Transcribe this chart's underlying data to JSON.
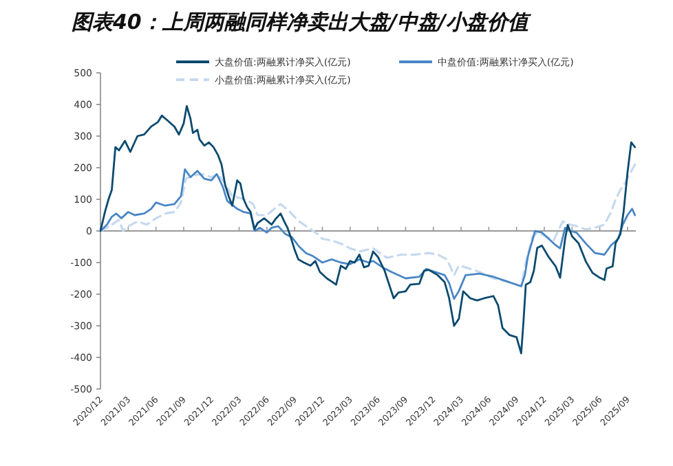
{
  "chart_data": {
    "type": "line",
    "title": "图表40：上周两融同样净卖出大盘/中盘/小盘价值",
    "xlim": [
      "2020-12-01",
      "2025-09-28"
    ],
    "xticks": [
      {
        "value": "2020-12",
        "label": "2020/12"
      },
      {
        "value": "2021-03",
        "label": "2021/03"
      },
      {
        "value": "2021-06",
        "label": "2021/06"
      },
      {
        "value": "2021-09",
        "label": "2021/09"
      },
      {
        "value": "2021-12",
        "label": "2021/12"
      },
      {
        "value": "2022-03",
        "label": "2022/03"
      },
      {
        "value": "2022-06",
        "label": "2022/06"
      },
      {
        "value": "2022-09",
        "label": "2022/09"
      },
      {
        "value": "2022-12",
        "label": "2022/12"
      },
      {
        "value": "2023-03",
        "label": "2023/03"
      },
      {
        "value": "2023-06",
        "label": "2023/06"
      },
      {
        "value": "2023-09",
        "label": "2023/09"
      },
      {
        "value": "2023-12",
        "label": "2023/12"
      },
      {
        "value": "2024-03",
        "label": "2024/03"
      },
      {
        "value": "2024-06",
        "label": "2024/06"
      },
      {
        "value": "2024-09",
        "label": "2024/09"
      },
      {
        "value": "2024-12",
        "label": "2024/12"
      },
      {
        "value": "2025-03",
        "label": "2025/03"
      },
      {
        "value": "2025-06",
        "label": "2025/06"
      },
      {
        "value": "2025-09",
        "label": "2025/09"
      }
    ],
    "ylim": [
      -500,
      500
    ],
    "yticks": [
      -500,
      -400,
      -300,
      -200,
      -100,
      0,
      100,
      200,
      300,
      400,
      500
    ],
    "legend": "top",
    "marker": "none",
    "series": [
      {
        "name": "大盘价值:两融累计净买入(亿元)",
        "color": "#0b4a6f",
        "line_style": "solid",
        "x": [
          "2020-12-01",
          "2020-12-16",
          "2020-12-28",
          "2021-01-08",
          "2021-01-20",
          "2021-02-01",
          "2021-02-19",
          "2021-03-08",
          "2021-04-01",
          "2021-04-23",
          "2021-05-16",
          "2021-06-08",
          "2021-06-20",
          "2021-07-08",
          "2021-08-01",
          "2021-08-16",
          "2021-09-01",
          "2021-09-11",
          "2021-09-23",
          "2021-10-01",
          "2021-10-16",
          "2021-10-23",
          "2021-11-08",
          "2021-11-23",
          "2021-12-08",
          "2021-12-23",
          "2022-01-04",
          "2022-01-16",
          "2022-01-28",
          "2022-02-08",
          "2022-02-23",
          "2022-03-05",
          "2022-03-16",
          "2022-03-28",
          "2022-04-08",
          "2022-04-20",
          "2022-05-01",
          "2022-05-23",
          "2022-06-16",
          "2022-07-01",
          "2022-07-16",
          "2022-07-28",
          "2022-08-08",
          "2022-08-19",
          "2022-09-01",
          "2022-09-13",
          "2022-10-01",
          "2022-10-23",
          "2022-11-08",
          "2022-11-23",
          "2022-12-16",
          "2023-01-01",
          "2023-01-16",
          "2023-02-01",
          "2023-02-16",
          "2023-03-01",
          "2023-03-16",
          "2023-04-01",
          "2023-04-16",
          "2023-05-01",
          "2023-05-16",
          "2023-06-01",
          "2023-06-23",
          "2023-07-23",
          "2023-08-08",
          "2023-09-01",
          "2023-09-16",
          "2023-10-16",
          "2023-11-01",
          "2023-11-16",
          "2023-12-16",
          "2024-01-08",
          "2024-01-23",
          "2024-02-08",
          "2024-02-23",
          "2024-03-08",
          "2024-04-01",
          "2024-04-23",
          "2024-05-16",
          "2024-06-16",
          "2024-07-01",
          "2024-07-16",
          "2024-08-08",
          "2024-09-01",
          "2024-09-16",
          "2024-09-23",
          "2024-10-01",
          "2024-10-16",
          "2024-10-28",
          "2024-11-08",
          "2024-11-23",
          "2024-12-16",
          "2025-01-08",
          "2025-01-23",
          "2025-02-08",
          "2025-02-16",
          "2025-03-01",
          "2025-03-23",
          "2025-04-16",
          "2025-05-08",
          "2025-06-01",
          "2025-06-16",
          "2025-06-23",
          "2025-07-13",
          "2025-07-23",
          "2025-08-08",
          "2025-08-19",
          "2025-09-01",
          "2025-09-13",
          "2025-09-25"
        ],
        "values": [
          0,
          60,
          100,
          130,
          265,
          255,
          285,
          250,
          300,
          305,
          330,
          345,
          365,
          350,
          330,
          305,
          340,
          395,
          355,
          310,
          320,
          290,
          270,
          280,
          265,
          240,
          210,
          145,
          110,
          80,
          160,
          150,
          100,
          75,
          60,
          5,
          25,
          40,
          20,
          40,
          55,
          30,
          10,
          -20,
          -60,
          -90,
          -100,
          -110,
          -95,
          -130,
          -150,
          -160,
          -170,
          -110,
          -120,
          -95,
          -100,
          -75,
          -115,
          -110,
          -65,
          -82,
          -126,
          -213,
          -195,
          -191,
          -170,
          -167,
          -126,
          -123,
          -140,
          -162,
          -213,
          -300,
          -278,
          -191,
          -213,
          -220,
          -213,
          -206,
          -235,
          -307,
          -329,
          -336,
          -387,
          -293,
          -170,
          -162,
          -126,
          -54,
          -46,
          -83,
          -112,
          -148,
          -25,
          19,
          -17,
          -39,
          -97,
          -133,
          -148,
          -155,
          -119,
          -112,
          -39,
          -10,
          62,
          185,
          280,
          265
        ]
      },
      {
        "name": "中盘价值:两融累计净买入(亿元)",
        "color": "#4a86c5",
        "line_style": "solid",
        "x": [
          "2020-12-01",
          "2020-12-23",
          "2021-01-08",
          "2021-01-23",
          "2021-02-08",
          "2021-03-01",
          "2021-03-23",
          "2021-04-23",
          "2021-05-16",
          "2021-06-01",
          "2021-07-01",
          "2021-08-01",
          "2021-08-23",
          "2021-09-05",
          "2021-09-23",
          "2021-10-16",
          "2021-11-08",
          "2021-12-01",
          "2021-12-19",
          "2022-01-08",
          "2022-01-23",
          "2022-02-23",
          "2022-03-16",
          "2022-04-08",
          "2022-04-23",
          "2022-05-08",
          "2022-06-01",
          "2022-06-16",
          "2022-07-08",
          "2022-08-01",
          "2022-08-23",
          "2022-09-16",
          "2022-10-08",
          "2022-11-01",
          "2022-12-01",
          "2023-01-01",
          "2023-02-01",
          "2023-03-01",
          "2023-04-01",
          "2023-05-01",
          "2023-05-16",
          "2023-06-16",
          "2023-07-16",
          "2023-09-01",
          "2023-10-16",
          "2023-11-08",
          "2023-12-08",
          "2024-01-08",
          "2024-01-23",
          "2024-02-08",
          "2024-02-23",
          "2024-03-16",
          "2024-05-01",
          "2024-06-16",
          "2024-08-01",
          "2024-09-16",
          "2024-09-28",
          "2024-10-08",
          "2024-11-01",
          "2024-11-23",
          "2024-12-16",
          "2025-01-08",
          "2025-01-23",
          "2025-02-08",
          "2025-02-23",
          "2025-03-16",
          "2025-04-16",
          "2025-05-16",
          "2025-06-16",
          "2025-07-08",
          "2025-08-01",
          "2025-08-16",
          "2025-09-01",
          "2025-09-16",
          "2025-09-25"
        ],
        "values": [
          0,
          20,
          45,
          55,
          40,
          60,
          50,
          55,
          70,
          90,
          80,
          85,
          110,
          195,
          170,
          190,
          165,
          160,
          180,
          140,
          95,
          70,
          60,
          55,
          0,
          10,
          -5,
          10,
          15,
          -10,
          -20,
          -50,
          -70,
          -80,
          -100,
          -90,
          -100,
          -105,
          -90,
          -100,
          -95,
          -115,
          -130,
          -150,
          -145,
          -120,
          -130,
          -140,
          -165,
          -215,
          -190,
          -140,
          -135,
          -145,
          -160,
          -175,
          -140,
          -80,
          0,
          -5,
          -25,
          -45,
          -55,
          10,
          0,
          -5,
          -40,
          -70,
          -75,
          -45,
          -25,
          20,
          50,
          70,
          50
        ]
      },
      {
        "name": "小盘价值:两融累计净买入(亿元)",
        "color": "#c5d9ef",
        "line_style": "dashed",
        "x": [
          "2020-12-01",
          "2021-01-01",
          "2021-02-01",
          "2021-02-13",
          "2021-03-01",
          "2021-04-01",
          "2021-05-01",
          "2021-06-01",
          "2021-07-01",
          "2021-08-01",
          "2021-08-23",
          "2021-09-08",
          "2021-10-01",
          "2021-11-01",
          "2021-12-01",
          "2021-12-23",
          "2022-01-16",
          "2022-02-08",
          "2022-03-01",
          "2022-03-23",
          "2022-04-16",
          "2022-05-01",
          "2022-06-01",
          "2022-07-01",
          "2022-07-16",
          "2022-08-16",
          "2022-09-16",
          "2022-10-16",
          "2022-11-16",
          "2022-12-01",
          "2023-01-01",
          "2023-02-01",
          "2023-03-01",
          "2023-04-01",
          "2023-05-16",
          "2023-07-01",
          "2023-08-16",
          "2023-10-01",
          "2023-11-16",
          "2023-12-16",
          "2024-01-16",
          "2024-02-08",
          "2024-02-23",
          "2024-03-16",
          "2024-05-01",
          "2024-06-16",
          "2024-08-01",
          "2024-09-16",
          "2024-10-01",
          "2024-10-23",
          "2024-11-08",
          "2024-12-01",
          "2025-01-01",
          "2025-02-01",
          "2025-02-23",
          "2025-03-16",
          "2025-04-16",
          "2025-05-16",
          "2025-06-16",
          "2025-07-08",
          "2025-07-23",
          "2025-08-08",
          "2025-08-23",
          "2025-09-08",
          "2025-09-25"
        ],
        "values": [
          0,
          15,
          35,
          0,
          15,
          30,
          20,
          40,
          55,
          60,
          90,
          165,
          175,
          180,
          170,
          180,
          150,
          110,
          105,
          100,
          85,
          50,
          50,
          75,
          85,
          60,
          30,
          10,
          -10,
          -25,
          -30,
          -40,
          -55,
          -65,
          -55,
          -85,
          -75,
          -75,
          -70,
          -75,
          -90,
          -140,
          -110,
          -115,
          -130,
          -150,
          -160,
          -175,
          -100,
          -20,
          -5,
          -15,
          -30,
          30,
          20,
          15,
          5,
          10,
          20,
          60,
          100,
          130,
          150,
          180,
          210
        ]
      }
    ]
  }
}
